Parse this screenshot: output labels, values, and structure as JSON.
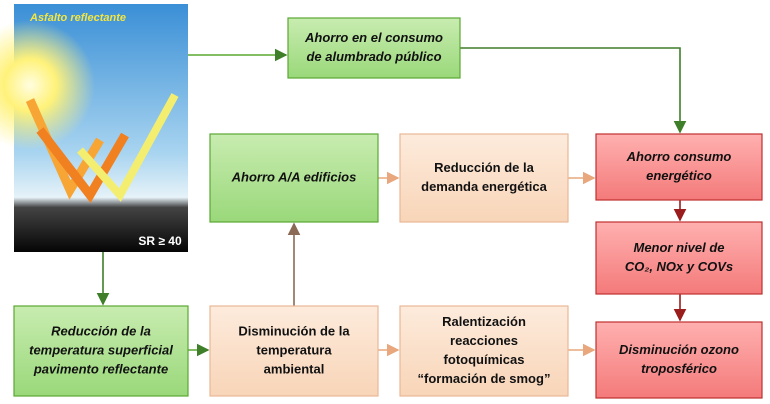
{
  "image": {
    "title": "Asfalto reflectante",
    "caption": "SR ≥ 40"
  },
  "nodes": [
    {
      "lines": [
        "Ahorro en el consumo",
        "de alumbrado  público"
      ]
    },
    {
      "lines": [
        "Ahorro A/A edificios"
      ]
    },
    {
      "lines": [
        "Reducción de la",
        "demanda energética"
      ]
    },
    {
      "lines": [
        "Ahorro consumo",
        "energético"
      ]
    },
    {
      "lines": [
        "Menor nivel de",
        "CO₂, NOx y COVs"
      ]
    },
    {
      "lines": [
        "Disminución ozono",
        "troposférico"
      ]
    },
    {
      "lines": [
        "Reducción  de la",
        "temperatura superficial",
        "pavimento  reflectante"
      ]
    },
    {
      "lines": [
        "Disminución de la",
        "temperatura",
        "ambiental"
      ]
    },
    {
      "lines": [
        "Ralentización",
        "reacciones",
        "fotoquímicas",
        "“formación de smog”"
      ]
    }
  ]
}
